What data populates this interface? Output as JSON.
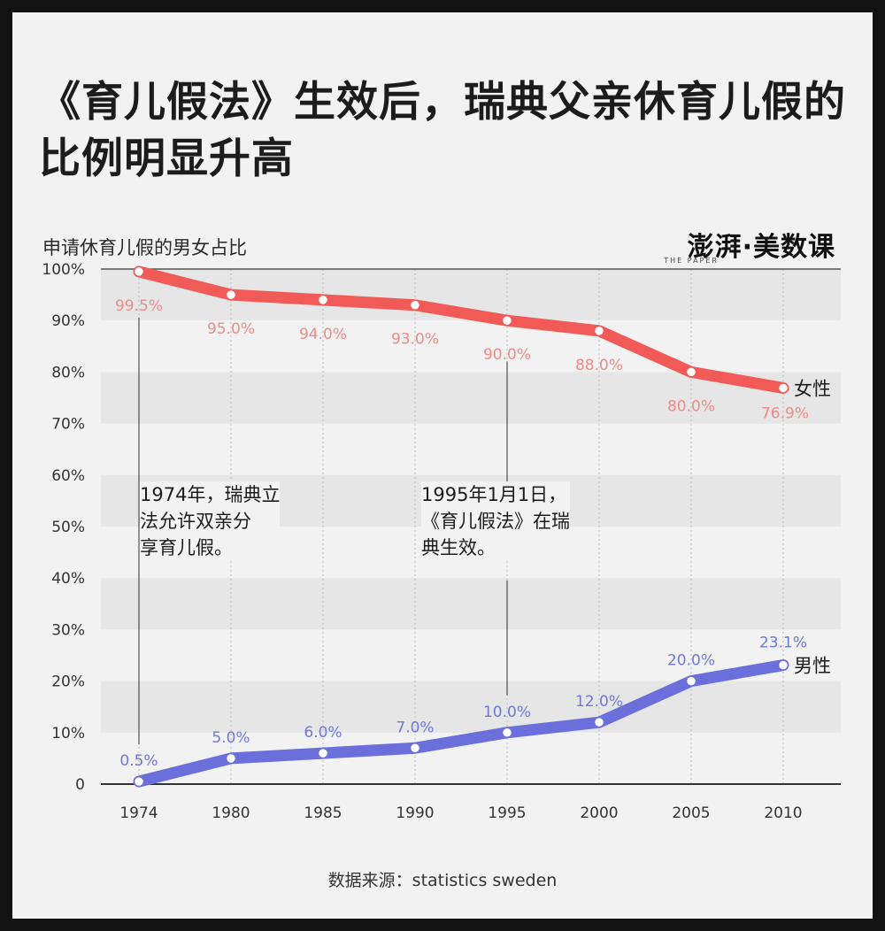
{
  "title": "《育儿假法》生效后，瑞典父亲休育儿假的比例明显升高",
  "brand": {
    "name": "澎湃·美数课",
    "sub": "THE PAPER"
  },
  "source": "数据来源：statistics sweden",
  "annotations": [
    {
      "year": 1974,
      "text": "1974年，瑞典立\n法允许双亲分\n享育儿假。"
    },
    {
      "year": 1995,
      "text": "1995年1月1日，\n《育儿假法》在瑞\n典生效。"
    }
  ],
  "colors": {
    "female": "#f25a57",
    "male": "#6a6fdc",
    "female_label": "#f08a86",
    "male_label": "#6f78db",
    "band": "#e6e6e6"
  },
  "chart_data": {
    "type": "line",
    "title": "《育儿假法》生效后，瑞典父亲休育儿假的比例明显升高",
    "subtitle": "申请休育儿假的男女占比",
    "x": [
      1974,
      1980,
      1985,
      1990,
      1995,
      2000,
      2005,
      2010
    ],
    "x_tick_labels": [
      "1974",
      "1980",
      "1985",
      "1990",
      "1995",
      "2000",
      "2005",
      "2010"
    ],
    "y_ticks": [
      0,
      10,
      20,
      30,
      40,
      50,
      60,
      70,
      80,
      90,
      100
    ],
    "y_tick_labels": [
      "0",
      "10%",
      "20%",
      "30%",
      "40%",
      "50%",
      "60%",
      "70%",
      "80%",
      "90%",
      "100%"
    ],
    "ylim": [
      0,
      100
    ],
    "grid": "alternating-bands",
    "series": [
      {
        "name": "女性",
        "values": [
          99.5,
          95.0,
          94.0,
          93.0,
          90.0,
          88.0,
          80.0,
          76.9
        ],
        "labels": [
          "99.5%",
          "95.0%",
          "94.0%",
          "93.0%",
          "90.0%",
          "88.0%",
          "80.0%",
          "76.9%"
        ]
      },
      {
        "name": "男性",
        "values": [
          0.5,
          5.0,
          6.0,
          7.0,
          10.0,
          12.0,
          20.0,
          23.1
        ],
        "labels": [
          "0.5%",
          "5.0%",
          "6.0%",
          "7.0%",
          "10.0%",
          "12.0%",
          "20.0%",
          "23.1%"
        ]
      }
    ]
  }
}
